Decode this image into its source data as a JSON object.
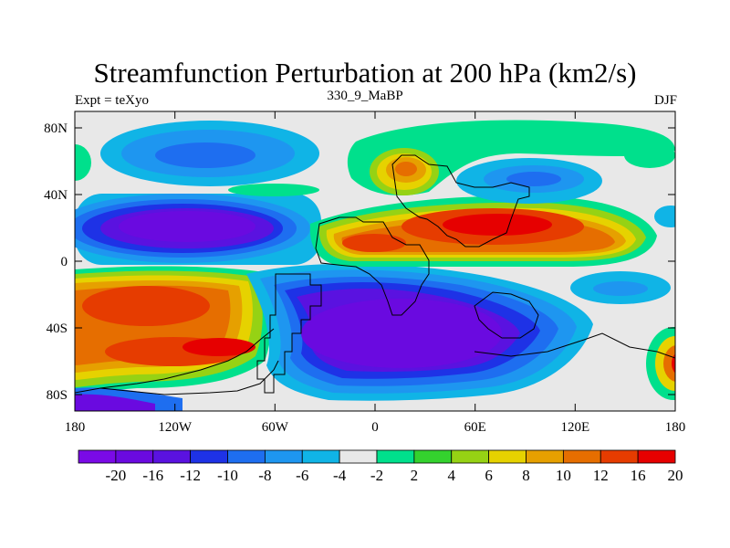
{
  "title": "Streamfunction Perturbation at 200 hPa (km2/s)",
  "subtitle_left": "Expt = teXyo",
  "subtitle_center": "330_9_MaBP",
  "subtitle_right": "DJF",
  "lat_labels": [
    "80N",
    "40N",
    "0",
    "40S",
    "80S"
  ],
  "lon_labels": [
    "180",
    "120W",
    "60W",
    "0",
    "60E",
    "120E",
    "180"
  ],
  "colorbar": {
    "colors": [
      "#7a0ae6",
      "#6a0ae0",
      "#5a12e0",
      "#1e32e6",
      "#1e6ef0",
      "#1e96f0",
      "#10b4e6",
      "#e8e8e8",
      "#00e08c",
      "#34d22e",
      "#96d214",
      "#e6d200",
      "#e6a000",
      "#e66e00",
      "#e63c00",
      "#e60000"
    ],
    "labels": [
      "-20",
      "-16",
      "-12",
      "-10",
      "-8",
      "-6",
      "-4",
      "-2",
      "2",
      "4",
      "6",
      "8",
      "10",
      "12",
      "16",
      "20"
    ]
  },
  "legend_colors": {
    "neutral": "#e8e8e8",
    "strong_negative": "#6a0ae0",
    "strong_positive": "#e63c00"
  }
}
